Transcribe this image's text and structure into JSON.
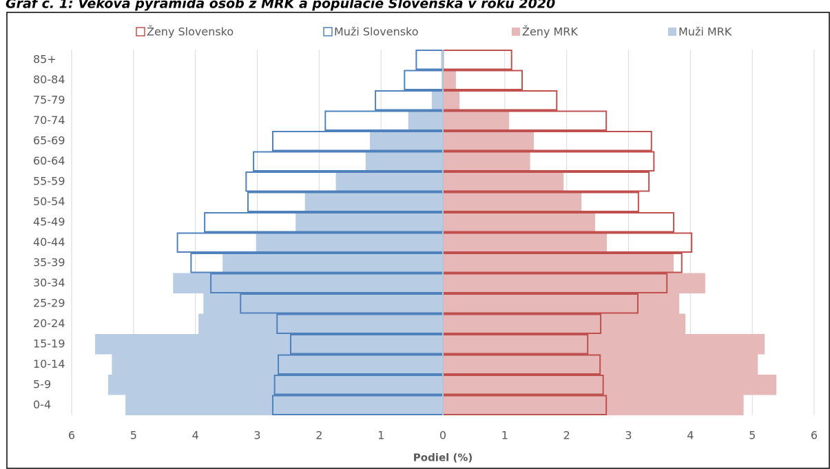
{
  "chart_data": {
    "type": "pyramid",
    "title": "Graf č. 1: Veková pyramída osôb z MRK a populácie Slovenska v roku 2020",
    "x_label": "Podiel (%)",
    "categories": [
      "0-4",
      "5-9",
      "10-14",
      "15-19",
      "20-24",
      "25-29",
      "30-34",
      "35-39",
      "40-44",
      "45-49",
      "50-54",
      "55-59",
      "60-64",
      "65-69",
      "70-74",
      "75-79",
      "80-84",
      "85+"
    ],
    "series": [
      {
        "name": "Ženy Slovensko",
        "color": "#c0504d",
        "style": "outline",
        "values": [
          2.64,
          2.59,
          2.54,
          2.34,
          2.55,
          3.15,
          3.62,
          3.86,
          4.02,
          3.73,
          3.16,
          3.33,
          3.41,
          3.37,
          2.64,
          1.84,
          1.28,
          1.11
        ]
      },
      {
        "name": "Muži Slovensko",
        "color": "#4f81bd",
        "style": "outline",
        "values": [
          -2.75,
          -2.72,
          -2.66,
          -2.46,
          -2.68,
          -3.27,
          -3.75,
          -4.07,
          -4.29,
          -3.85,
          -3.15,
          -3.18,
          -3.06,
          -2.75,
          -1.9,
          -1.09,
          -0.62,
          -0.43
        ]
      },
      {
        "name": "Ženy MRK",
        "color": "#e6b8b7",
        "style": "fill",
        "values": [
          4.86,
          5.39,
          5.09,
          5.2,
          3.92,
          3.82,
          4.24,
          3.73,
          2.65,
          2.46,
          2.24,
          1.95,
          1.41,
          1.47,
          1.07,
          0.27,
          0.21,
          0.02
        ]
      },
      {
        "name": "Muži MRK",
        "color": "#b8cce4",
        "style": "fill",
        "values": [
          -5.13,
          -5.41,
          -5.35,
          -5.62,
          -3.95,
          -3.87,
          -4.36,
          -3.56,
          -3.02,
          -2.38,
          -2.23,
          -1.73,
          -1.25,
          -1.18,
          -0.56,
          -0.18,
          -0.02,
          -0.03
        ]
      }
    ],
    "xlim": [
      -6,
      6
    ],
    "xticks": [
      {
        "value": -6,
        "label": "6"
      },
      {
        "value": -5,
        "label": "5"
      },
      {
        "value": -4,
        "label": "4"
      },
      {
        "value": -3,
        "label": "3"
      },
      {
        "value": -2,
        "label": "2"
      },
      {
        "value": -1,
        "label": "1"
      },
      0,
      1,
      2,
      3,
      4,
      5,
      6
    ],
    "grid": true
  }
}
